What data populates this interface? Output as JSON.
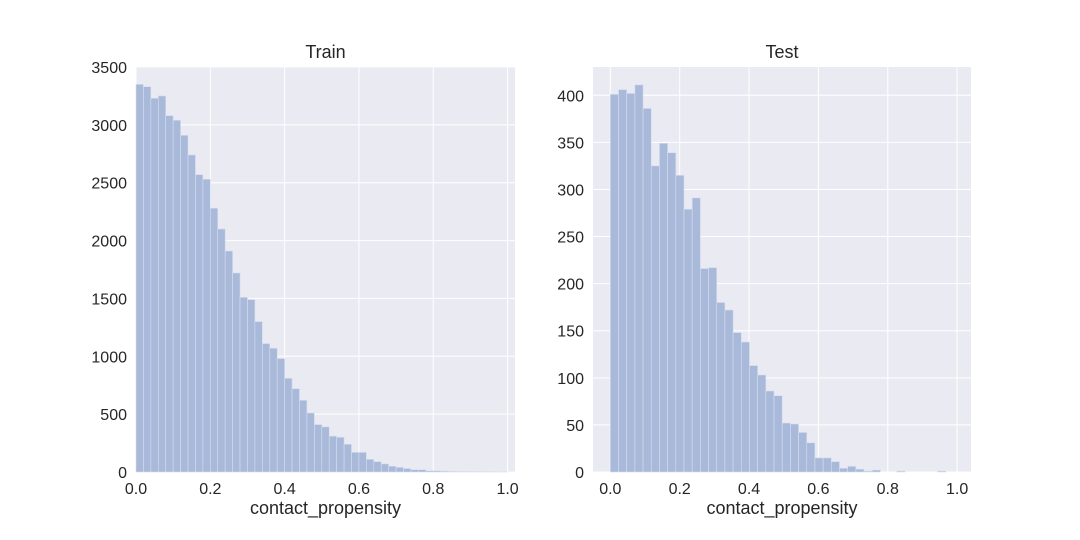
{
  "colors": {
    "plot_bg": "#eaeaf2",
    "grid": "#ffffff",
    "bar_fill": "#a9b9da",
    "bar_edge": "#d7deee",
    "text": "#262626"
  },
  "chart_data": [
    {
      "type": "bar",
      "title": "Train",
      "xlabel": "contact_propensity",
      "ylabel": "",
      "grid": true,
      "xlim": [
        0.0,
        1.02
      ],
      "ylim": [
        0,
        3500
      ],
      "x_ticks": [
        0.0,
        0.2,
        0.4,
        0.6,
        0.8,
        1.0
      ],
      "x_tick_labels": [
        "0.0",
        "0.2",
        "0.4",
        "0.6",
        "0.8",
        "1.0"
      ],
      "y_ticks": [
        0,
        500,
        1000,
        1500,
        2000,
        2500,
        3000,
        3500
      ],
      "y_tick_labels": [
        "0",
        "500",
        "1000",
        "1500",
        "2000",
        "2500",
        "3000",
        "3500"
      ],
      "bin_start": 0.0,
      "bin_width": 0.02,
      "values": [
        3350,
        3330,
        3230,
        3250,
        3080,
        3040,
        2910,
        2740,
        2570,
        2530,
        2280,
        2100,
        1910,
        1720,
        1510,
        1490,
        1300,
        1110,
        1070,
        980,
        810,
        720,
        620,
        510,
        410,
        390,
        310,
        300,
        240,
        170,
        170,
        110,
        90,
        70,
        50,
        40,
        30,
        20,
        20,
        10,
        10,
        8,
        6,
        5,
        4,
        3,
        3,
        2,
        1,
        1
      ]
    },
    {
      "type": "bar",
      "title": "Test",
      "xlabel": "contact_propensity",
      "ylabel": "",
      "grid": true,
      "xlim": [
        -0.05,
        1.04
      ],
      "ylim": [
        0,
        430
      ],
      "x_ticks": [
        0.0,
        0.2,
        0.4,
        0.6,
        0.8,
        1.0
      ],
      "x_tick_labels": [
        "0.0",
        "0.2",
        "0.4",
        "0.6",
        "0.8",
        "1.0"
      ],
      "y_ticks": [
        0,
        50,
        100,
        150,
        200,
        250,
        300,
        350,
        400
      ],
      "y_tick_labels": [
        "0",
        "50",
        "100",
        "150",
        "200",
        "250",
        "300",
        "350",
        "400"
      ],
      "bin_start": 0.0,
      "bin_width": 0.0236,
      "values": [
        401,
        406,
        402,
        411,
        386,
        325,
        349,
        339,
        315,
        279,
        291,
        216,
        217,
        180,
        172,
        148,
        138,
        113,
        103,
        86,
        81,
        52,
        51,
        42,
        31,
        15,
        15,
        11,
        4,
        6,
        3,
        1,
        2,
        0,
        0,
        1,
        0,
        0,
        0,
        0,
        1,
        0,
        0
      ]
    }
  ]
}
